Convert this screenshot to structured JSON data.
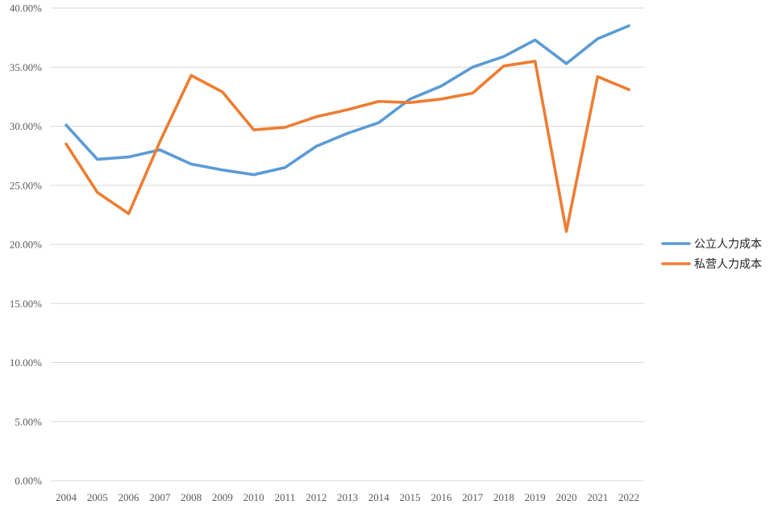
{
  "chart_data": {
    "type": "line",
    "title": "",
    "xlabel": "",
    "ylabel": "",
    "x": [
      "2004",
      "2005",
      "2006",
      "2007",
      "2008",
      "2009",
      "2010",
      "2011",
      "2012",
      "2013",
      "2014",
      "2015",
      "2016",
      "2017",
      "2018",
      "2019",
      "2020",
      "2021",
      "2022"
    ],
    "y_ticks": [
      "0.00%",
      "5.00%",
      "10.00%",
      "15.00%",
      "20.00%",
      "25.00%",
      "30.00%",
      "35.00%",
      "40.00%"
    ],
    "ylim": [
      0,
      40
    ],
    "y_unit": "%",
    "grid": true,
    "legend_position": "right",
    "series": [
      {
        "name": "公立人力成本",
        "color": "#5b9bd5",
        "values": [
          30.1,
          27.2,
          27.4,
          28.0,
          26.8,
          26.3,
          25.9,
          26.5,
          28.3,
          29.4,
          30.3,
          32.3,
          33.4,
          35.0,
          35.9,
          37.3,
          35.3,
          37.4,
          38.5
        ]
      },
      {
        "name": "私营人力成本",
        "color": "#ed7d31",
        "values": [
          28.5,
          24.4,
          22.6,
          28.7,
          34.3,
          32.9,
          29.7,
          29.9,
          30.8,
          31.4,
          32.1,
          32.0,
          32.3,
          32.8,
          35.1,
          35.5,
          21.1,
          34.2,
          33.1
        ]
      }
    ]
  }
}
